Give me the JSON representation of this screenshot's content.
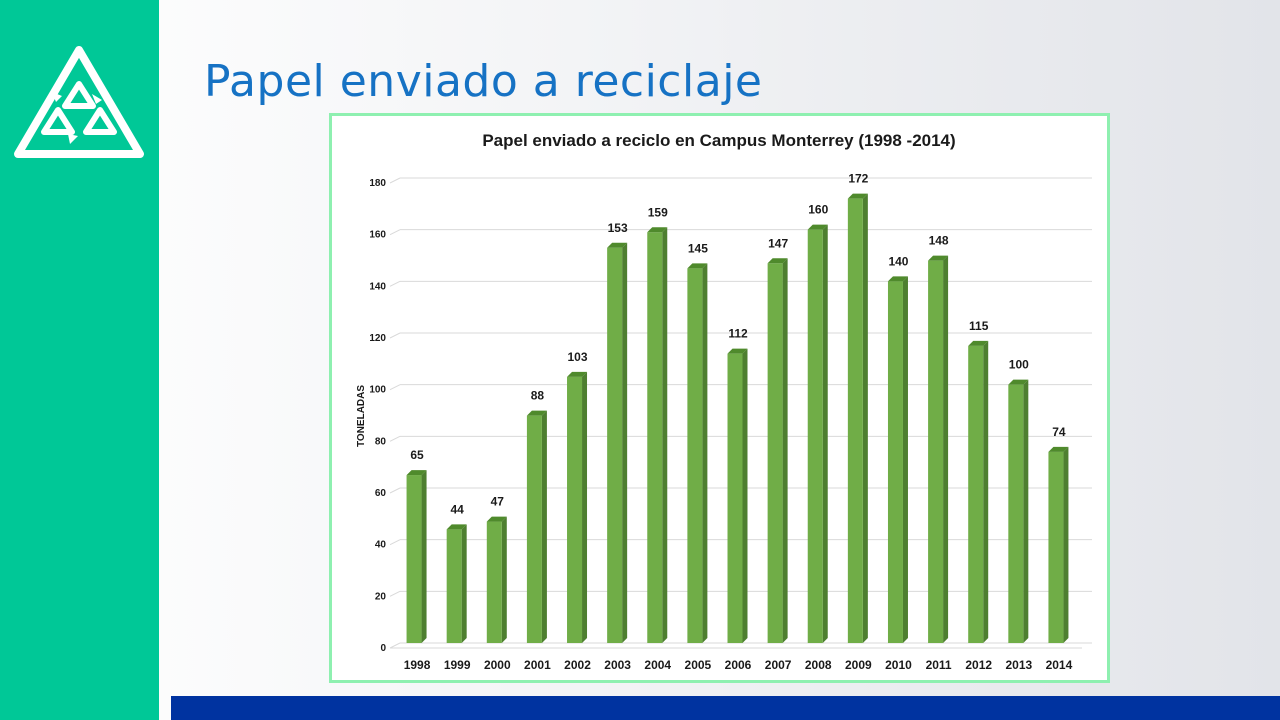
{
  "slide": {
    "title": "Papel enviado a reciclaje",
    "logo_icon": "recycle-triangle-icon",
    "colors": {
      "sidebar": "#00c897",
      "title": "#1672c4",
      "bottom_bar": "#0033a0",
      "chart_border": "#8ef0b0"
    }
  },
  "chart_data": {
    "type": "bar",
    "title": "Papel enviado a reciclo en Campus Monterrey (1998 -2014)",
    "xlabel": "",
    "ylabel": "TONELADAS",
    "ylim": [
      0,
      180
    ],
    "yticks": [
      0,
      20,
      40,
      60,
      80,
      100,
      120,
      140,
      160,
      180
    ],
    "grid": true,
    "bar_color": "#70ad47",
    "bar_style": "3d",
    "data_labels": true,
    "categories": [
      "1998",
      "1999",
      "2000",
      "2001",
      "2002",
      "2003",
      "2004",
      "2005",
      "2006",
      "2007",
      "2008",
      "2009",
      "2010",
      "2011",
      "2012",
      "2013",
      "2014"
    ],
    "values": [
      65,
      44,
      47,
      88,
      103,
      153,
      159,
      145,
      112,
      147,
      160,
      172,
      140,
      148,
      115,
      100,
      74
    ]
  }
}
